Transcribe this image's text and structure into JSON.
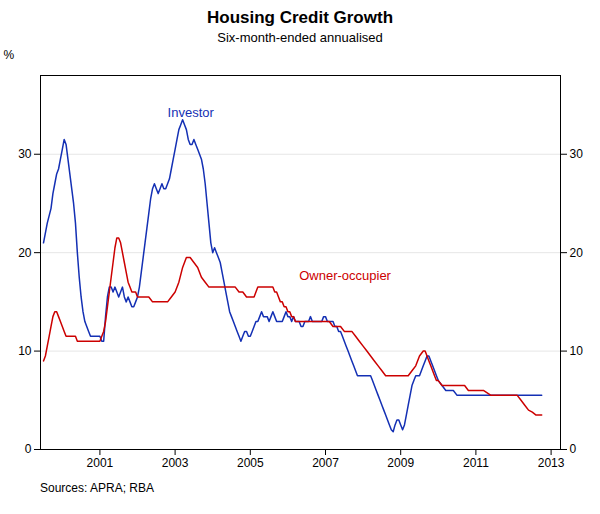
{
  "chart_data": {
    "type": "line",
    "title": "Housing Credit Growth",
    "subtitle": "Six-month-ended annualised",
    "source": "Sources: APRA; RBA",
    "ylabel": "%",
    "xlim": [
      1999.42,
      2013.25
    ],
    "xticks": [
      2001,
      2003,
      2005,
      2007,
      2009,
      2011,
      2013
    ],
    "ylim": [
      0,
      38
    ],
    "yticks": [
      0,
      10,
      20,
      30
    ],
    "y2lim": [
      0,
      38
    ],
    "y2ticks": [
      0,
      10,
      20,
      30
    ],
    "grid": true,
    "series": [
      {
        "name": "Investor",
        "color": "#1430b4",
        "label": {
          "x": 2002.8,
          "y": 33.8
        },
        "x": [
          1999.5,
          1999.6,
          1999.7,
          1999.75,
          1999.8,
          1999.85,
          1999.9,
          1999.95,
          2000.0,
          2000.05,
          2000.1,
          2000.15,
          2000.2,
          2000.25,
          2000.3,
          2000.35,
          2000.4,
          2000.45,
          2000.5,
          2000.55,
          2000.6,
          2000.65,
          2000.7,
          2000.75,
          2000.8,
          2000.85,
          2000.9,
          2000.95,
          2001.0,
          2001.05,
          2001.1,
          2001.15,
          2001.2,
          2001.25,
          2001.3,
          2001.35,
          2001.4,
          2001.45,
          2001.5,
          2001.55,
          2001.6,
          2001.65,
          2001.7,
          2001.75,
          2001.8,
          2001.85,
          2001.9,
          2001.95,
          2002.0,
          2002.05,
          2002.1,
          2002.15,
          2002.2,
          2002.25,
          2002.3,
          2002.35,
          2002.4,
          2002.45,
          2002.5,
          2002.55,
          2002.6,
          2002.65,
          2002.7,
          2002.75,
          2002.8,
          2002.85,
          2002.9,
          2002.95,
          2003.0,
          2003.05,
          2003.1,
          2003.15,
          2003.2,
          2003.25,
          2003.3,
          2003.35,
          2003.4,
          2003.45,
          2003.5,
          2003.55,
          2003.6,
          2003.65,
          2003.7,
          2003.75,
          2003.8,
          2003.85,
          2003.9,
          2003.95,
          2004.0,
          2004.05,
          2004.1,
          2004.15,
          2004.2,
          2004.25,
          2004.3,
          2004.35,
          2004.4,
          2004.45,
          2004.5,
          2004.55,
          2004.6,
          2004.65,
          2004.7,
          2004.75,
          2004.8,
          2004.85,
          2004.9,
          2004.95,
          2005.0,
          2005.05,
          2005.1,
          2005.15,
          2005.2,
          2005.25,
          2005.3,
          2005.35,
          2005.4,
          2005.45,
          2005.5,
          2005.55,
          2005.6,
          2005.65,
          2005.7,
          2005.75,
          2005.8,
          2005.85,
          2005.9,
          2005.95,
          2006.0,
          2006.05,
          2006.1,
          2006.15,
          2006.2,
          2006.25,
          2006.3,
          2006.35,
          2006.4,
          2006.45,
          2006.5,
          2006.55,
          2006.6,
          2006.65,
          2006.7,
          2006.75,
          2006.8,
          2006.85,
          2006.9,
          2006.95,
          2007.0,
          2007.05,
          2007.1,
          2007.15,
          2007.2,
          2007.25,
          2007.3,
          2007.35,
          2007.4,
          2007.45,
          2007.5,
          2007.55,
          2007.6,
          2007.65,
          2007.7,
          2007.75,
          2007.8,
          2007.85,
          2007.9,
          2007.95,
          2008.0,
          2008.05,
          2008.1,
          2008.15,
          2008.2,
          2008.25,
          2008.3,
          2008.35,
          2008.4,
          2008.45,
          2008.5,
          2008.55,
          2008.6,
          2008.65,
          2008.7,
          2008.75,
          2008.8,
          2008.85,
          2008.9,
          2008.95,
          2009.0,
          2009.05,
          2009.1,
          2009.15,
          2009.2,
          2009.25,
          2009.3,
          2009.35,
          2009.4,
          2009.45,
          2009.5,
          2009.55,
          2009.6,
          2009.65,
          2009.7,
          2009.75,
          2009.8,
          2009.85,
          2009.9,
          2009.95,
          2010.0,
          2010.1,
          2010.2,
          2010.3,
          2010.4,
          2010.5,
          2010.6,
          2010.7,
          2010.8,
          2010.9,
          2011.0,
          2011.2,
          2011.4,
          2011.6,
          2011.8,
          2012.0,
          2012.2,
          2012.4,
          2012.6,
          2012.75
        ],
        "values": [
          21.0,
          23.0,
          24.5,
          26.0,
          27.0,
          28.0,
          28.5,
          29.5,
          30.5,
          31.5,
          31.0,
          29.5,
          28.0,
          26.5,
          25.0,
          23.0,
          20.0,
          17.5,
          15.5,
          14.0,
          13.0,
          12.5,
          12.0,
          11.5,
          11.5,
          11.5,
          11.5,
          11.5,
          11.5,
          11.0,
          11.0,
          13.5,
          15.5,
          16.5,
          16.5,
          16.0,
          16.5,
          16.0,
          15.5,
          16.0,
          16.5,
          15.5,
          15.0,
          15.5,
          15.0,
          14.5,
          14.5,
          15.0,
          15.5,
          16.5,
          18.0,
          19.5,
          21.0,
          22.5,
          24.0,
          25.5,
          26.5,
          27.0,
          26.5,
          26.0,
          26.5,
          27.0,
          26.5,
          26.5,
          27.0,
          27.5,
          28.5,
          29.5,
          30.5,
          31.5,
          32.5,
          33.0,
          33.5,
          33.0,
          32.5,
          31.5,
          31.0,
          31.0,
          31.5,
          31.0,
          30.5,
          30.0,
          29.5,
          28.5,
          27.0,
          25.0,
          23.0,
          21.0,
          20.0,
          20.5,
          20.0,
          19.5,
          19.0,
          18.0,
          17.0,
          16.0,
          15.0,
          14.0,
          13.5,
          13.0,
          12.5,
          12.0,
          11.5,
          11.0,
          11.5,
          12.0,
          12.0,
          11.5,
          11.5,
          12.0,
          12.5,
          13.0,
          13.0,
          13.5,
          14.0,
          13.5,
          13.5,
          13.5,
          13.0,
          13.5,
          14.0,
          13.5,
          13.0,
          13.0,
          13.0,
          13.0,
          13.5,
          14.0,
          13.5,
          13.5,
          13.0,
          13.5,
          13.0,
          13.0,
          13.0,
          12.5,
          12.5,
          13.0,
          13.0,
          13.0,
          13.5,
          13.0,
          13.0,
          13.0,
          13.0,
          13.0,
          13.0,
          13.5,
          13.5,
          13.0,
          13.0,
          13.0,
          13.0,
          12.5,
          12.5,
          12.0,
          12.0,
          11.5,
          11.0,
          10.5,
          10.0,
          9.5,
          9.0,
          8.5,
          8.0,
          7.5,
          7.5,
          7.5,
          7.5,
          7.5,
          7.5,
          7.5,
          7.5,
          7.0,
          6.5,
          6.0,
          5.5,
          5.0,
          4.5,
          4.0,
          3.5,
          3.0,
          2.5,
          2.0,
          1.8,
          2.5,
          3.0,
          3.0,
          2.5,
          2.0,
          2.5,
          3.5,
          4.5,
          5.5,
          6.5,
          7.0,
          7.5,
          7.5,
          7.5,
          8.0,
          8.5,
          9.0,
          9.5,
          9.5,
          9.0,
          8.5,
          8.0,
          7.5,
          7.0,
          6.5,
          6.0,
          6.0,
          6.0,
          5.5,
          5.5,
          5.5,
          5.5,
          5.5,
          5.5,
          5.5,
          5.5,
          5.5,
          5.5,
          5.5,
          5.5,
          5.5,
          5.5,
          5.5
        ]
      },
      {
        "name": "Owner-occupier",
        "color": "#cc0000",
        "label": {
          "x": 2006.3,
          "y": 17.2
        },
        "x": [
          1999.5,
          1999.55,
          1999.6,
          1999.65,
          1999.7,
          1999.75,
          1999.8,
          1999.85,
          1999.9,
          1999.95,
          2000.0,
          2000.05,
          2000.1,
          2000.15,
          2000.2,
          2000.25,
          2000.3,
          2000.35,
          2000.4,
          2000.45,
          2000.5,
          2000.55,
          2000.6,
          2000.65,
          2000.7,
          2000.75,
          2000.8,
          2000.85,
          2000.9,
          2000.95,
          2001.0,
          2001.05,
          2001.1,
          2001.15,
          2001.2,
          2001.25,
          2001.3,
          2001.35,
          2001.4,
          2001.45,
          2001.5,
          2001.55,
          2001.6,
          2001.65,
          2001.7,
          2001.75,
          2001.8,
          2001.85,
          2001.9,
          2001.95,
          2002.0,
          2002.1,
          2002.2,
          2002.3,
          2002.4,
          2002.5,
          2002.6,
          2002.7,
          2002.8,
          2002.9,
          2003.0,
          2003.1,
          2003.2,
          2003.3,
          2003.4,
          2003.5,
          2003.6,
          2003.7,
          2003.8,
          2003.9,
          2004.0,
          2004.1,
          2004.2,
          2004.3,
          2004.4,
          2004.5,
          2004.6,
          2004.7,
          2004.8,
          2004.9,
          2005.0,
          2005.05,
          2005.1,
          2005.15,
          2005.2,
          2005.25,
          2005.3,
          2005.35,
          2005.4,
          2005.45,
          2005.5,
          2005.55,
          2005.6,
          2005.65,
          2005.7,
          2005.75,
          2005.8,
          2005.85,
          2005.9,
          2005.95,
          2006.0,
          2006.05,
          2006.1,
          2006.15,
          2006.2,
          2006.25,
          2006.3,
          2006.35,
          2006.4,
          2006.45,
          2006.5,
          2006.55,
          2006.6,
          2006.65,
          2006.7,
          2006.75,
          2006.8,
          2006.85,
          2006.9,
          2006.95,
          2007.0,
          2007.1,
          2007.2,
          2007.3,
          2007.4,
          2007.5,
          2007.6,
          2007.7,
          2007.8,
          2007.9,
          2008.0,
          2008.1,
          2008.2,
          2008.3,
          2008.4,
          2008.5,
          2008.6,
          2008.7,
          2008.8,
          2008.9,
          2009.0,
          2009.1,
          2009.2,
          2009.3,
          2009.4,
          2009.5,
          2009.6,
          2009.65,
          2009.7,
          2009.75,
          2009.8,
          2009.85,
          2009.9,
          2009.95,
          2010.0,
          2010.1,
          2010.2,
          2010.3,
          2010.4,
          2010.5,
          2010.6,
          2010.7,
          2010.8,
          2010.9,
          2011.0,
          2011.2,
          2011.4,
          2011.6,
          2011.8,
          2012.0,
          2012.1,
          2012.2,
          2012.3,
          2012.4,
          2012.5,
          2012.6,
          2012.7,
          2012.75
        ],
        "values": [
          9.0,
          9.5,
          10.5,
          11.5,
          12.5,
          13.5,
          14.0,
          14.0,
          13.5,
          13.0,
          12.5,
          12.0,
          11.5,
          11.5,
          11.5,
          11.5,
          11.5,
          11.5,
          11.0,
          11.0,
          11.0,
          11.0,
          11.0,
          11.0,
          11.0,
          11.0,
          11.0,
          11.0,
          11.0,
          11.0,
          11.0,
          11.5,
          12.0,
          13.0,
          14.5,
          16.0,
          17.5,
          19.0,
          20.5,
          21.5,
          21.5,
          21.0,
          20.0,
          19.0,
          18.0,
          17.0,
          16.5,
          16.0,
          16.0,
          16.0,
          15.5,
          15.5,
          15.5,
          15.5,
          15.0,
          15.0,
          15.0,
          15.0,
          15.0,
          15.5,
          16.0,
          17.0,
          18.5,
          19.5,
          19.5,
          19.0,
          18.5,
          17.5,
          17.0,
          16.5,
          16.5,
          16.5,
          16.5,
          16.5,
          16.5,
          16.5,
          16.5,
          16.0,
          16.0,
          15.5,
          15.5,
          15.5,
          15.5,
          16.0,
          16.5,
          16.5,
          16.5,
          16.5,
          16.5,
          16.5,
          16.5,
          16.5,
          16.5,
          16.0,
          16.0,
          15.5,
          15.0,
          15.0,
          14.5,
          14.5,
          14.0,
          14.0,
          13.5,
          13.5,
          13.0,
          13.0,
          13.0,
          13.0,
          13.0,
          13.0,
          13.0,
          13.0,
          13.0,
          13.0,
          13.0,
          13.0,
          13.0,
          13.0,
          13.0,
          13.0,
          13.0,
          13.0,
          12.5,
          12.5,
          12.5,
          12.0,
          12.0,
          12.0,
          11.5,
          11.0,
          10.5,
          10.0,
          9.5,
          9.0,
          8.5,
          8.0,
          7.5,
          7.5,
          7.5,
          7.5,
          7.5,
          7.5,
          7.5,
          8.0,
          8.5,
          9.5,
          10.0,
          10.0,
          9.5,
          9.0,
          8.5,
          8.0,
          7.5,
          7.0,
          7.0,
          6.5,
          6.5,
          6.5,
          6.5,
          6.5,
          6.5,
          6.5,
          6.0,
          6.0,
          6.0,
          6.0,
          5.5,
          5.5,
          5.5,
          5.5,
          5.5,
          5.0,
          4.5,
          4.0,
          3.8,
          3.5,
          3.5,
          3.5
        ]
      }
    ]
  }
}
